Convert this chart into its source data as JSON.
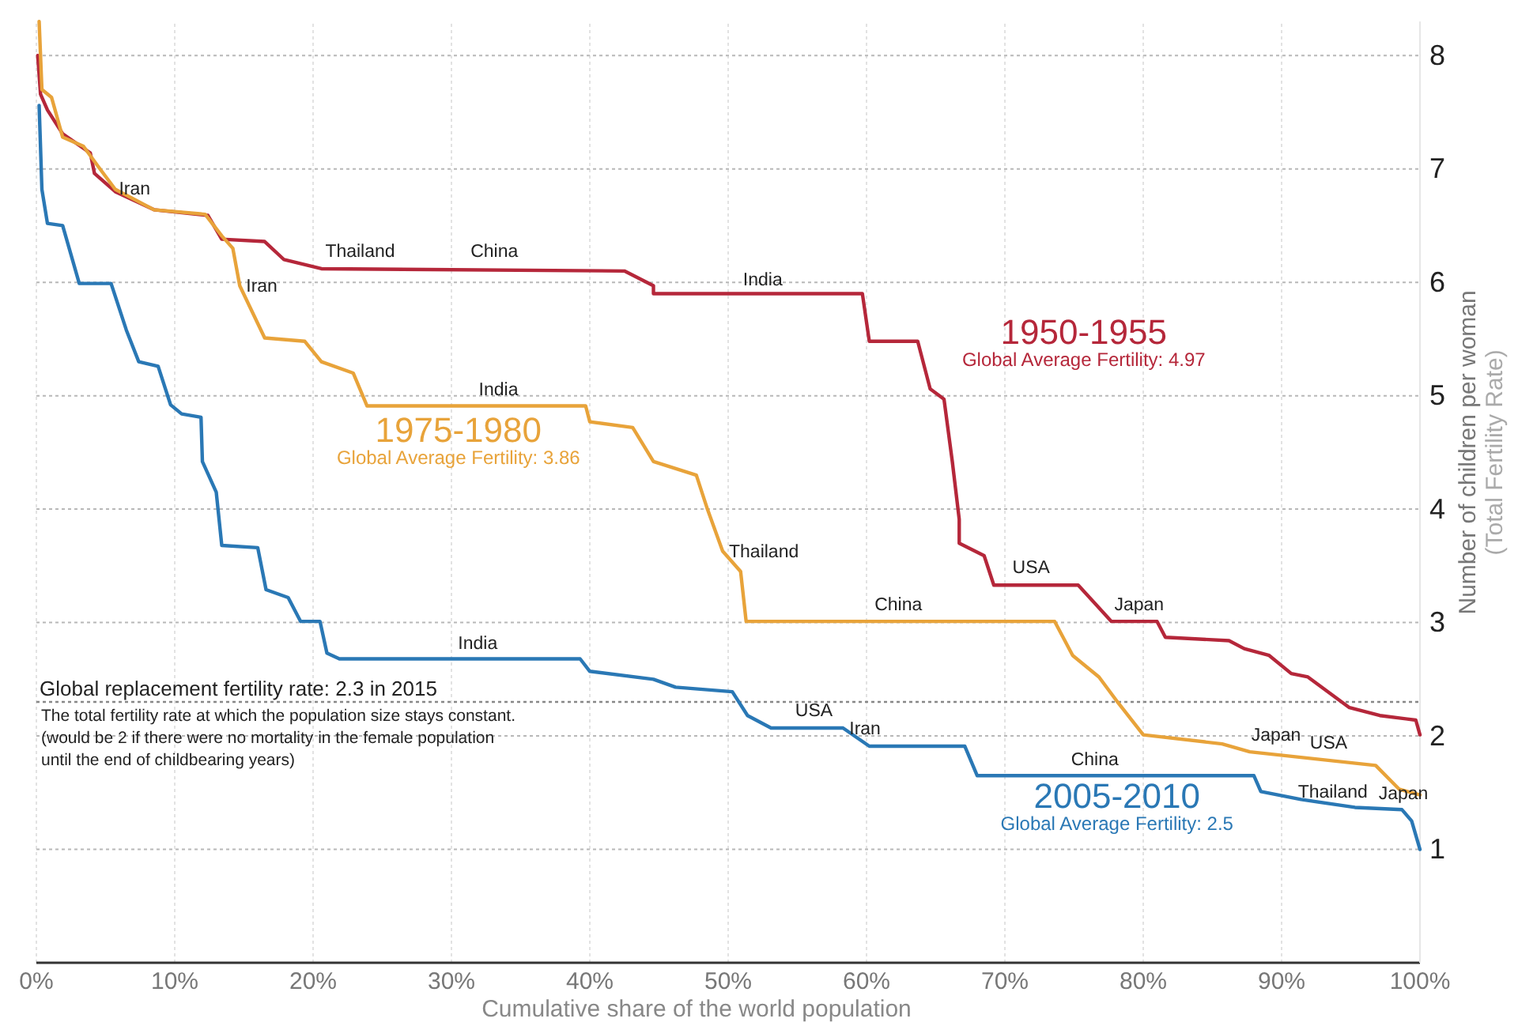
{
  "chart_data": {
    "type": "line",
    "xlabel": "Cumulative share of the world population",
    "ylabel": "Number of children per woman\n(Total Fertility Rate)",
    "xlim": [
      0,
      100
    ],
    "ylim": [
      0,
      8.3
    ],
    "xticks": [
      {
        "value": 0,
        "label": "0%"
      },
      {
        "value": 10,
        "label": "10%"
      },
      {
        "value": 20,
        "label": "20%"
      },
      {
        "value": 30,
        "label": "30%"
      },
      {
        "value": 40,
        "label": "40%"
      },
      {
        "value": 50,
        "label": "50%"
      },
      {
        "value": 60,
        "label": "60%"
      },
      {
        "value": 70,
        "label": "70%"
      },
      {
        "value": 80,
        "label": "80%"
      },
      {
        "value": 90,
        "label": "90%"
      },
      {
        "value": 100,
        "label": "100%"
      }
    ],
    "yticks": [
      1,
      2,
      3,
      4,
      5,
      6,
      7,
      8
    ],
    "grid": true,
    "legend": false,
    "marker": "none",
    "line_style": "solid",
    "series": [
      {
        "name": "1950-1955",
        "color": "#b5273a",
        "x": [
          0.1,
          0.3,
          0.8,
          1.9,
          3.9,
          4.2,
          5.7,
          8.5,
          12.4,
          13.4,
          16.5,
          17.9,
          20.6,
          42.5,
          44.6,
          44.6,
          59.7,
          60.2,
          63.7,
          64.6,
          65.6,
          66.2,
          66.7,
          66.7,
          68.5,
          69.2,
          75.3,
          77.7,
          81.0,
          81.6,
          86.2,
          87.3,
          89.1,
          90.7,
          91.9,
          94.9,
          97.1,
          99.7,
          100
        ],
        "values": [
          8.0,
          7.66,
          7.52,
          7.31,
          7.14,
          6.96,
          6.8,
          6.64,
          6.59,
          6.38,
          6.36,
          6.2,
          6.12,
          6.1,
          5.97,
          5.9,
          5.9,
          5.48,
          5.48,
          5.06,
          4.97,
          4.42,
          3.91,
          3.7,
          3.59,
          3.33,
          3.33,
          3.01,
          3.01,
          2.87,
          2.84,
          2.77,
          2.71,
          2.55,
          2.52,
          2.25,
          2.18,
          2.14,
          2.01
        ]
      },
      {
        "name": "1975-1980",
        "color": "#e8a33a",
        "x": [
          0.2,
          0.4,
          1.1,
          1.9,
          3.4,
          4.6,
          5.7,
          8.5,
          12.2,
          13.4,
          14.2,
          14.7,
          16.5,
          19.4,
          20.6,
          22.9,
          23.9,
          39.7,
          40.0,
          43.1,
          44.6,
          47.7,
          48.5,
          49.6,
          50.9,
          51.3,
          73.6,
          74.9,
          76.8,
          78.2,
          80.0,
          85.7,
          87.7,
          96.8,
          98.5,
          100
        ],
        "values": [
          8.3,
          7.7,
          7.63,
          7.28,
          7.2,
          7.0,
          6.82,
          6.64,
          6.6,
          6.41,
          6.3,
          5.97,
          5.51,
          5.48,
          5.3,
          5.2,
          4.91,
          4.91,
          4.77,
          4.72,
          4.42,
          4.3,
          4.0,
          3.63,
          3.45,
          3.01,
          3.01,
          2.71,
          2.52,
          2.29,
          2.01,
          1.93,
          1.86,
          1.74,
          1.53,
          1.48
        ]
      },
      {
        "name": "2005-2010",
        "color": "#2a78b5",
        "x": [
          0.2,
          0.4,
          0.8,
          1.9,
          3.1,
          5.4,
          6.5,
          7.4,
          8.8,
          9.7,
          10.5,
          11.9,
          12.0,
          13.0,
          13.4,
          16.0,
          16.6,
          18.2,
          19.1,
          20.5,
          21.0,
          21.9,
          39.3,
          40.0,
          44.6,
          46.2,
          50.3,
          51.4,
          53.1,
          58.3,
          60.2,
          67.1,
          68.0,
          88.0,
          88.5,
          91.4,
          95.3,
          98.7,
          99.4,
          100
        ],
        "values": [
          7.56,
          6.82,
          6.52,
          6.5,
          5.99,
          5.99,
          5.58,
          5.3,
          5.26,
          4.92,
          4.84,
          4.81,
          4.42,
          4.15,
          3.68,
          3.66,
          3.29,
          3.22,
          3.01,
          3.01,
          2.73,
          2.68,
          2.68,
          2.57,
          2.5,
          2.43,
          2.39,
          2.18,
          2.07,
          2.07,
          1.91,
          1.91,
          1.65,
          1.65,
          1.51,
          1.44,
          1.37,
          1.35,
          1.25,
          1.0
        ]
      }
    ],
    "ref_lines": [
      {
        "axis": "y",
        "value": 2.3,
        "label": "Global replacement fertility rate: 2.3 in 2015",
        "color": "#888888",
        "line_style": "dotted"
      }
    ],
    "annotations": [
      "Global Average Fertility: 4.97",
      "Global Average Fertility: 3.86",
      "Global Average Fertility: 2.5",
      "The total fertility rate at which the population size stays constant.",
      "(would be 2 if there were no mortality in the female population until the end of childbearing years)",
      {
        "text": "Iran",
        "x": 7.1,
        "y": 6.72
      },
      {
        "text": "Thailand",
        "x": 23.4,
        "y": 6.17
      },
      {
        "text": "China",
        "x": 33.1,
        "y": 6.17
      },
      {
        "text": "India",
        "x": 52.5,
        "y": 5.92
      },
      {
        "text": "Iran",
        "x": 14.7,
        "y": 5.97
      },
      {
        "text": "India",
        "x": 33.4,
        "y": 4.95
      },
      {
        "text": "Thailand",
        "x": 49.6,
        "y": 3.63
      },
      {
        "text": "China",
        "x": 62.3,
        "y": 3.05
      },
      {
        "text": "USA",
        "x": 71.9,
        "y": 3.38
      },
      {
        "text": "Japan",
        "x": 79.7,
        "y": 3.05
      },
      {
        "text": "India",
        "x": 31.9,
        "y": 2.71
      },
      {
        "text": "USA",
        "x": 56.2,
        "y": 2.12
      },
      {
        "text": "Iran",
        "x": 58.3,
        "y": 2.07
      },
      {
        "text": "Japan",
        "x": 89.6,
        "y": 1.9
      },
      {
        "text": "USA",
        "x": 93.4,
        "y": 1.83
      },
      {
        "text": "China",
        "x": 76.5,
        "y": 1.69
      },
      {
        "text": "Thailand",
        "x": 93.7,
        "y": 1.4
      },
      {
        "text": "Japan",
        "x": 98.8,
        "y": 1.39
      }
    ]
  }
}
